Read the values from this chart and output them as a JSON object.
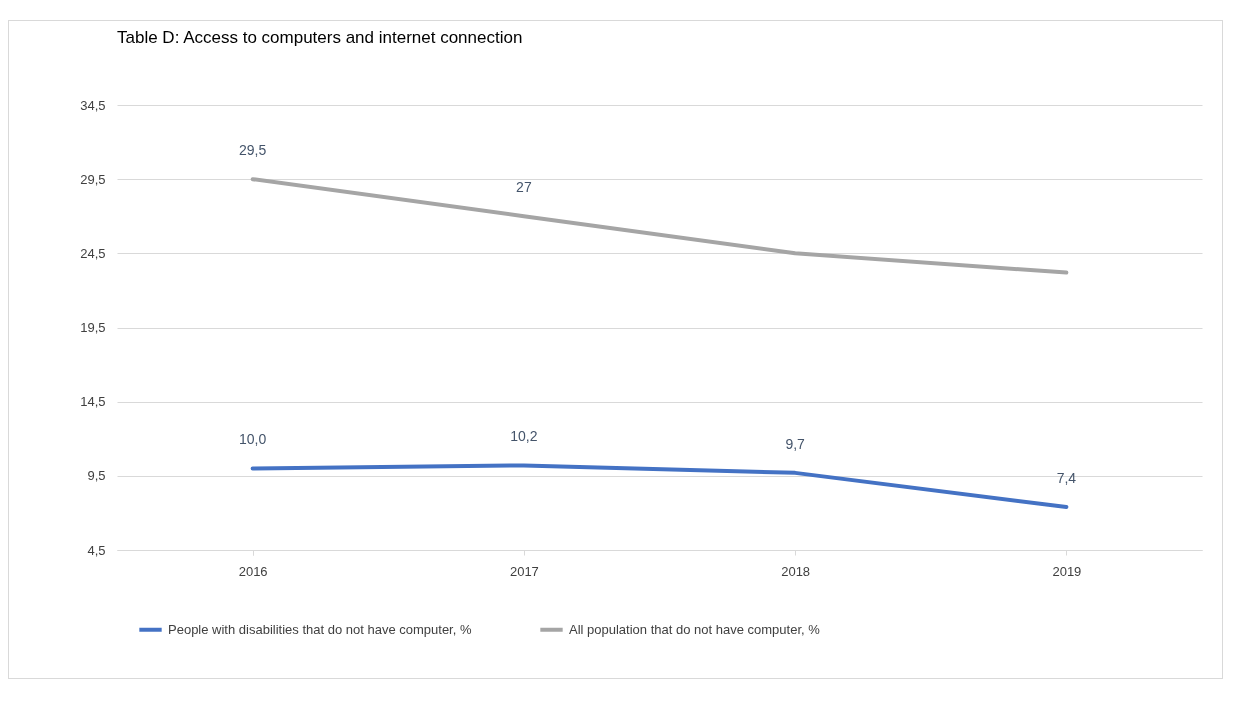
{
  "chart_data": {
    "type": "line",
    "title": "Table D: Access to computers and internet connection",
    "categories": [
      "2016",
      "2017",
      "2018",
      "2019"
    ],
    "series": [
      {
        "name": "People with disabilities that do not have computer, %",
        "color": "#4472c4",
        "values": [
          10.0,
          10.2,
          9.7,
          7.4
        ],
        "value_labels": [
          "10,0",
          "10,2",
          "9,7",
          "7,4"
        ]
      },
      {
        "name": "All population that do not have computer, %",
        "color": "#a5a5a5",
        "values": [
          29.5,
          27,
          24.5,
          23.2
        ],
        "value_labels": [
          "29,5",
          "27",
          null,
          null
        ]
      }
    ],
    "ylim": [
      4.5,
      34.5
    ],
    "yticks": [
      {
        "value": 4.5,
        "label": "4,5"
      },
      {
        "value": 9.5,
        "label": "9,5"
      },
      {
        "value": 14.5,
        "label": "14,5"
      },
      {
        "value": 19.5,
        "label": "19,5"
      },
      {
        "value": 24.5,
        "label": "24,5"
      },
      {
        "value": 29.5,
        "label": "29,5"
      },
      {
        "value": 34.5,
        "label": "34,5"
      }
    ],
    "grid": "y",
    "legend": "bottom",
    "marker": "none",
    "line_style": "solid"
  }
}
